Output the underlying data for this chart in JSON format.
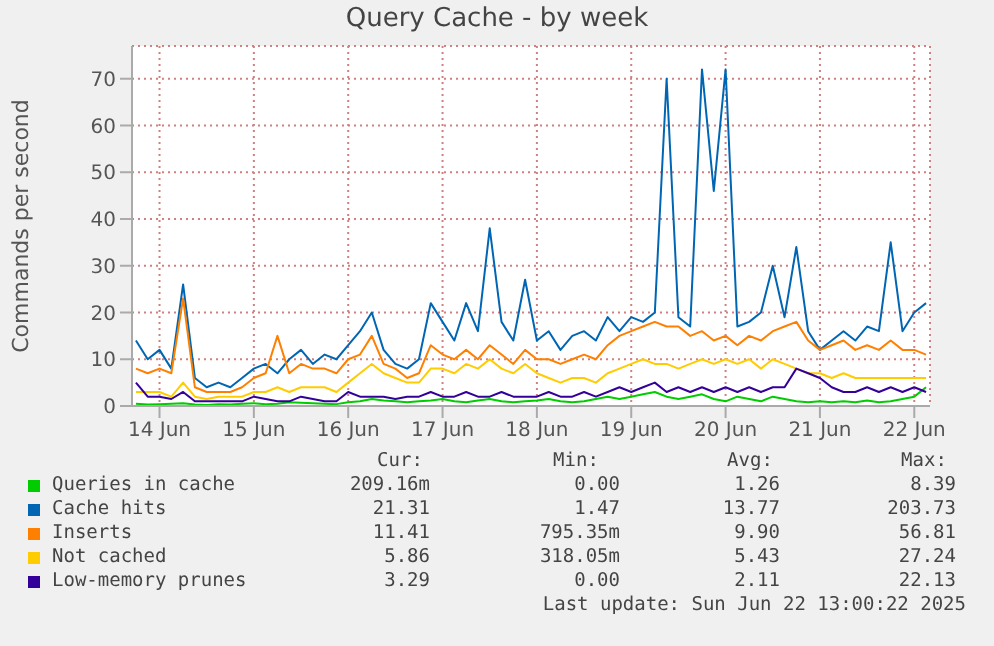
{
  "chart_data": {
    "type": "line",
    "title": "Query Cache - by week",
    "ylabel": "Commands per second",
    "x": [
      "2025-06-13T18:00",
      "2025-06-13T21:00",
      "2025-06-14T00:00",
      "2025-06-14T03:00",
      "2025-06-14T06:00",
      "2025-06-14T09:00",
      "2025-06-14T12:00",
      "2025-06-14T15:00",
      "2025-06-14T18:00",
      "2025-06-14T21:00",
      "2025-06-15T00:00",
      "2025-06-15T03:00",
      "2025-06-15T06:00",
      "2025-06-15T09:00",
      "2025-06-15T12:00",
      "2025-06-15T15:00",
      "2025-06-15T18:00",
      "2025-06-15T21:00",
      "2025-06-16T00:00",
      "2025-06-16T03:00",
      "2025-06-16T06:00",
      "2025-06-16T09:00",
      "2025-06-16T12:00",
      "2025-06-16T15:00",
      "2025-06-16T18:00",
      "2025-06-16T21:00",
      "2025-06-17T00:00",
      "2025-06-17T03:00",
      "2025-06-17T06:00",
      "2025-06-17T09:00",
      "2025-06-17T12:00",
      "2025-06-17T15:00",
      "2025-06-17T18:00",
      "2025-06-17T21:00",
      "2025-06-18T00:00",
      "2025-06-18T03:00",
      "2025-06-18T06:00",
      "2025-06-18T09:00",
      "2025-06-18T12:00",
      "2025-06-18T15:00",
      "2025-06-18T18:00",
      "2025-06-18T21:00",
      "2025-06-19T00:00",
      "2025-06-19T03:00",
      "2025-06-19T06:00",
      "2025-06-19T09:00",
      "2025-06-19T12:00",
      "2025-06-19T15:00",
      "2025-06-19T18:00",
      "2025-06-19T21:00",
      "2025-06-20T00:00",
      "2025-06-20T03:00",
      "2025-06-20T06:00",
      "2025-06-20T09:00",
      "2025-06-20T12:00",
      "2025-06-20T15:00",
      "2025-06-20T18:00",
      "2025-06-20T21:00",
      "2025-06-21T00:00",
      "2025-06-21T03:00",
      "2025-06-21T06:00",
      "2025-06-21T09:00",
      "2025-06-21T12:00",
      "2025-06-21T15:00",
      "2025-06-21T18:00",
      "2025-06-21T21:00",
      "2025-06-22T00:00",
      "2025-06-22T03:00"
    ],
    "series": [
      {
        "name": "Queries in cache",
        "color": "#00cc00",
        "values": [
          0.5,
          0.3,
          0.4,
          0.5,
          0.6,
          0.3,
          0.2,
          0.4,
          0.3,
          0.5,
          0.6,
          0.4,
          0.5,
          0.8,
          0.7,
          0.6,
          0.5,
          0.4,
          0.8,
          1,
          1.5,
          1.2,
          1,
          0.8,
          1,
          1.2,
          1.5,
          1,
          0.8,
          1.2,
          1.5,
          1,
          0.8,
          1,
          1.2,
          1.5,
          1,
          0.8,
          1,
          1.5,
          2,
          1.5,
          2,
          2.5,
          3,
          2,
          1.5,
          2,
          2.5,
          1.5,
          1,
          2,
          1.5,
          1,
          2,
          1.5,
          1,
          0.8,
          1,
          0.8,
          1,
          0.8,
          1.2,
          0.8,
          1,
          1.5,
          2,
          4
        ]
      },
      {
        "name": "Cache hits",
        "color": "#0066b3",
        "values": [
          14,
          10,
          12,
          8,
          26,
          6,
          4,
          5,
          4,
          6,
          8,
          9,
          7,
          10,
          12,
          9,
          11,
          10,
          13,
          16,
          20,
          12,
          9,
          8,
          10,
          22,
          18,
          14,
          22,
          16,
          38,
          18,
          14,
          27,
          14,
          16,
          12,
          15,
          16,
          14,
          19,
          16,
          19,
          18,
          20,
          70,
          19,
          17,
          72,
          46,
          72,
          17,
          18,
          20,
          30,
          19,
          34,
          16,
          12,
          14,
          16,
          14,
          17,
          16,
          35,
          16,
          20,
          22
        ]
      },
      {
        "name": "Inserts",
        "color": "#ff8000",
        "values": [
          8,
          7,
          8,
          7,
          23,
          4,
          3,
          3,
          3,
          4,
          6,
          7,
          15,
          7,
          9,
          8,
          8,
          7,
          10,
          11,
          15,
          9,
          8,
          6,
          7,
          13,
          11,
          10,
          12,
          10,
          13,
          11,
          9,
          12,
          10,
          10,
          9,
          10,
          11,
          10,
          13,
          15,
          16,
          17,
          18,
          17,
          17,
          15,
          16,
          14,
          15,
          13,
          15,
          14,
          16,
          17,
          18,
          14,
          12,
          13,
          14,
          12,
          13,
          12,
          14,
          12,
          12,
          11
        ]
      },
      {
        "name": "Not cached",
        "color": "#ffcc00",
        "values": [
          3,
          3,
          3,
          2,
          5,
          2,
          1.5,
          2,
          2,
          2,
          3,
          3,
          4,
          3,
          4,
          4,
          4,
          3,
          5,
          7,
          9,
          7,
          6,
          5,
          5,
          8,
          8,
          7,
          9,
          8,
          10,
          8,
          7,
          9,
          7,
          6,
          5,
          6,
          6,
          5,
          7,
          8,
          9,
          10,
          9,
          9,
          8,
          9,
          10,
          9,
          10,
          9,
          10,
          8,
          10,
          9,
          8,
          7,
          7,
          6,
          7,
          6,
          6,
          6,
          6,
          6,
          6,
          6
        ]
      },
      {
        "name": "Low-memory prunes",
        "color": "#330099",
        "values": [
          5,
          2,
          2,
          1.5,
          3,
          1,
          1,
          1,
          1,
          1,
          2,
          1.5,
          1,
          1,
          2,
          1.5,
          1,
          1,
          3,
          2,
          2,
          2,
          1.5,
          2,
          2,
          3,
          2,
          2,
          3,
          2,
          2,
          3,
          2,
          2,
          2,
          3,
          2,
          2,
          3,
          2,
          3,
          4,
          3,
          4,
          5,
          3,
          4,
          3,
          4,
          3,
          4,
          3,
          4,
          3,
          4,
          4,
          8,
          7,
          6,
          4,
          3,
          3,
          4,
          3,
          4,
          3,
          4,
          3
        ]
      }
    ],
    "xlim": [
      "2025-06-13T17:00",
      "2025-06-22T04:00"
    ],
    "xticks": [
      {
        "value": "2025-06-14T00:00",
        "label": "14 Jun"
      },
      {
        "value": "2025-06-15T00:00",
        "label": "15 Jun"
      },
      {
        "value": "2025-06-16T00:00",
        "label": "16 Jun"
      },
      {
        "value": "2025-06-17T00:00",
        "label": "17 Jun"
      },
      {
        "value": "2025-06-18T00:00",
        "label": "18 Jun"
      },
      {
        "value": "2025-06-19T00:00",
        "label": "19 Jun"
      },
      {
        "value": "2025-06-20T00:00",
        "label": "20 Jun"
      },
      {
        "value": "2025-06-21T00:00",
        "label": "21 Jun"
      },
      {
        "value": "2025-06-22T00:00",
        "label": "22 Jun"
      }
    ],
    "ylim": [
      0,
      77
    ],
    "yticks": [
      0,
      10,
      20,
      30,
      40,
      50,
      60,
      70
    ],
    "grid": true,
    "legend": "bottom",
    "marker": "none",
    "line_style": "solid",
    "annotations": [
      "Cur:",
      "Min:",
      "Avg:",
      "Max:",
      "209.16m",
      "0.00",
      "1.26",
      "8.39",
      "21.31",
      "1.47",
      "13.77",
      "203.73",
      "11.41",
      "795.35m",
      "9.90",
      "56.81",
      "5.86",
      "318.05m",
      "5.43",
      "27.24",
      "3.29",
      "0.00",
      "2.11",
      "22.13",
      "Last update: Sun Jun 22 13:00:22 2025"
    ]
  }
}
